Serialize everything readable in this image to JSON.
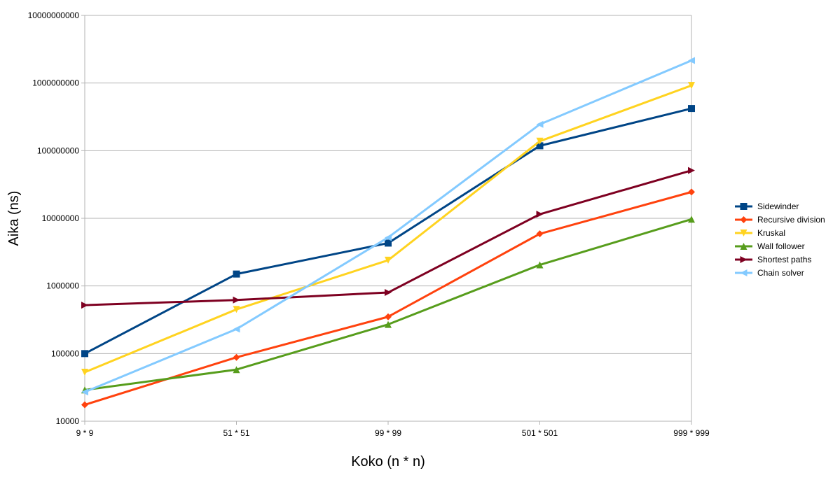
{
  "chart_data": {
    "type": "line",
    "title": "",
    "xlabel": "Koko (n * n)",
    "ylabel": "Aika (ns)",
    "yscale": "log",
    "ylim": [
      10000,
      10000000000
    ],
    "yticks": [
      "10000",
      "100000",
      "1000000",
      "10000000",
      "100000000",
      "1000000000",
      "10000000000"
    ],
    "categories": [
      "9 * 9",
      "51 * 51",
      "99 * 99",
      "501 * 501",
      "999 * 999"
    ],
    "grid": true,
    "legend_position": "right",
    "series": [
      {
        "name": "Sidewinder",
        "color": "#004586",
        "marker": "square",
        "values": [
          100000,
          1500000,
          4300000,
          118000000,
          420000000
        ]
      },
      {
        "name": "Recursive division",
        "color": "#ff420e",
        "marker": "diamond",
        "values": [
          17500,
          88000,
          350000,
          5900000,
          24500000
        ]
      },
      {
        "name": "Kruskal",
        "color": "#ffd320",
        "marker": "triangle-down",
        "values": [
          53000,
          450000,
          2400000,
          138000000,
          920000000
        ]
      },
      {
        "name": "Wall follower",
        "color": "#579d1c",
        "marker": "triangle-up",
        "values": [
          29000,
          58000,
          270000,
          2050000,
          9700000
        ]
      },
      {
        "name": "Shortest paths",
        "color": "#7e0021",
        "marker": "triangle-right",
        "values": [
          520000,
          620000,
          800000,
          11500000,
          51000000
        ]
      },
      {
        "name": "Chain solver",
        "color": "#83caff",
        "marker": "triangle-left",
        "values": [
          27000,
          230000,
          5200000,
          245000000,
          2150000000
        ]
      }
    ]
  }
}
